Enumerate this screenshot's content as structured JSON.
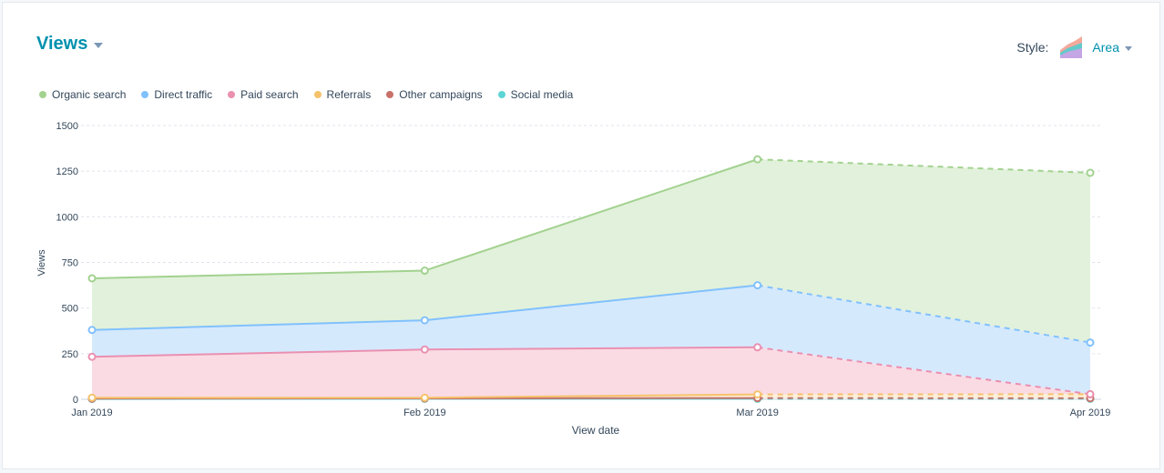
{
  "header": {
    "title": "Views",
    "style_label": "Style:",
    "style_value": "Area"
  },
  "chart_data": {
    "type": "area",
    "stacked": true,
    "categories": [
      "Jan 2019",
      "Feb 2019",
      "Mar 2019",
      "Apr 2019"
    ],
    "xlabel": "View date",
    "ylabel": "Views",
    "ylim": [
      0,
      1500
    ],
    "yticks": [
      0,
      250,
      500,
      750,
      1000,
      1250,
      1500
    ],
    "ytick_labels": [
      "0",
      "250",
      "500",
      "750",
      "1000",
      "1250",
      "1500"
    ],
    "grid": true,
    "legend_position": "top-left",
    "dashed_from_index": 2,
    "series": [
      {
        "name": "Social media",
        "color": "#5ed5d5",
        "fill": "#d4f4f4",
        "values": [
          2,
          3,
          3,
          3
        ]
      },
      {
        "name": "Other campaigns",
        "color": "#c8716a",
        "fill": "#f2dcda",
        "values": [
          2,
          2,
          4,
          3
        ]
      },
      {
        "name": "Referrals",
        "color": "#f5c26b",
        "fill": "#fdf0d8",
        "values": [
          5,
          4,
          20,
          22
        ]
      },
      {
        "name": "Paid search",
        "color": "#ea90b1",
        "fill": "#fadbe4",
        "values": [
          224,
          264,
          258,
          0
        ]
      },
      {
        "name": "Direct traffic",
        "color": "#81c1fd",
        "fill": "#d5e9fd",
        "values": [
          147,
          160,
          340,
          283
        ]
      },
      {
        "name": "Organic search",
        "color": "#a2d28f",
        "fill": "#e2f1db",
        "values": [
          283,
          272,
          690,
          930
        ]
      }
    ]
  }
}
